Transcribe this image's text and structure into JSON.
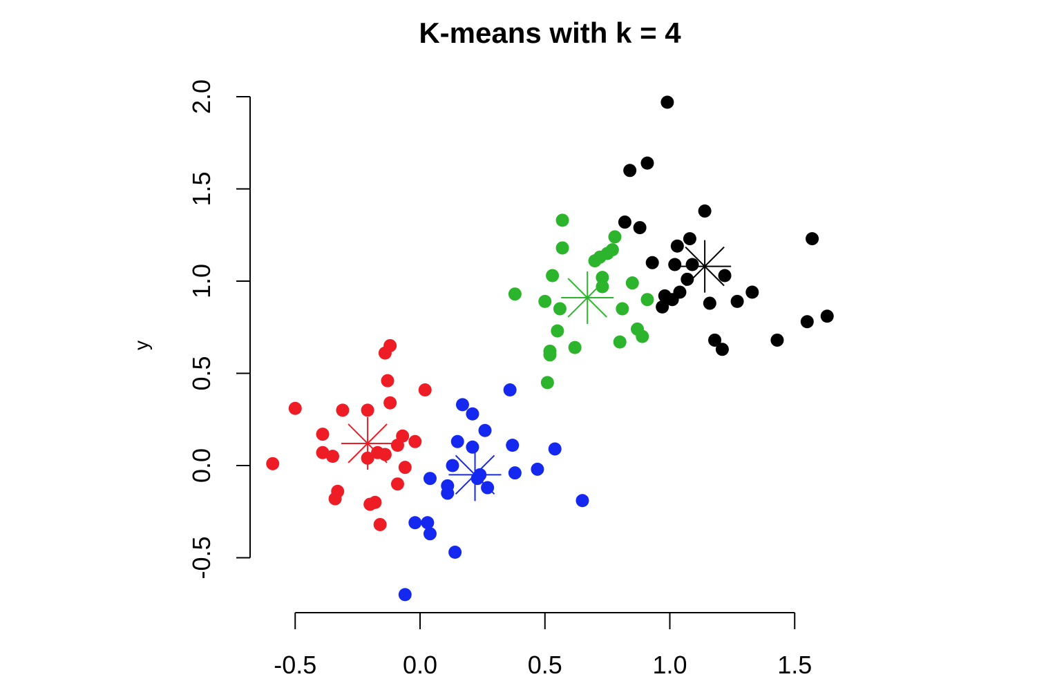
{
  "chart_data": {
    "type": "scatter",
    "title": "K-means with k = 4",
    "xlabel": "",
    "ylabel": "y",
    "xlim": [
      -0.5,
      1.5
    ],
    "ylim": [
      -0.5,
      2.0
    ],
    "xticks": [
      -0.5,
      0.0,
      0.5,
      1.0,
      1.5
    ],
    "yticks": [
      -0.5,
      0.0,
      0.5,
      1.0,
      1.5,
      2.0
    ],
    "xtick_labels": [
      "-0.5",
      "0.0",
      "0.5",
      "1.0",
      "1.5"
    ],
    "ytick_labels": [
      "-0.5",
      "0.0",
      "0.5",
      "1.0",
      "1.5",
      "2.0"
    ],
    "grid": false,
    "legend": "none",
    "series": [
      {
        "color": "#ee1c25",
        "centroid": [
          -0.21,
          0.12
        ],
        "x": [
          -0.59,
          -0.5,
          -0.39,
          -0.39,
          -0.35,
          -0.33,
          -0.34,
          -0.31,
          -0.21,
          -0.21,
          -0.2,
          -0.18,
          -0.17,
          -0.16,
          -0.13,
          -0.14,
          -0.14,
          -0.12,
          -0.12,
          -0.09,
          -0.09,
          -0.07,
          -0.06,
          -0.02,
          0.02
        ],
        "y": [
          0.01,
          0.31,
          0.17,
          0.07,
          0.05,
          -0.14,
          -0.18,
          0.3,
          0.3,
          0.04,
          -0.21,
          -0.2,
          0.07,
          -0.32,
          0.46,
          0.61,
          0.06,
          0.34,
          0.65,
          0.11,
          -0.1,
          0.16,
          -0.01,
          0.13,
          0.41
        ]
      },
      {
        "color": "#1428f0",
        "centroid": [
          0.22,
          -0.05
        ],
        "x": [
          -0.06,
          -0.02,
          0.03,
          0.04,
          0.04,
          0.11,
          0.11,
          0.13,
          0.14,
          0.15,
          0.17,
          0.21,
          0.21,
          0.23,
          0.24,
          0.26,
          0.27,
          0.36,
          0.37,
          0.38,
          0.47,
          0.54,
          0.65
        ],
        "y": [
          -0.7,
          -0.31,
          -0.31,
          -0.37,
          -0.07,
          -0.15,
          -0.11,
          0.0,
          -0.47,
          0.13,
          0.33,
          0.1,
          0.28,
          -0.07,
          -0.05,
          0.19,
          -0.12,
          0.41,
          0.11,
          -0.04,
          -0.02,
          0.09,
          -0.19
        ]
      },
      {
        "color": "#2cb52c",
        "centroid": [
          0.67,
          0.91
        ],
        "x": [
          0.38,
          0.5,
          0.51,
          0.52,
          0.52,
          0.53,
          0.55,
          0.56,
          0.57,
          0.57,
          0.62,
          0.7,
          0.72,
          0.73,
          0.73,
          0.75,
          0.77,
          0.78,
          0.8,
          0.81,
          0.85,
          0.87,
          0.89,
          0.91
        ],
        "y": [
          0.93,
          0.89,
          0.45,
          0.6,
          0.62,
          1.03,
          0.73,
          0.85,
          1.33,
          1.18,
          0.64,
          1.11,
          1.13,
          0.97,
          1.02,
          1.15,
          1.17,
          1.24,
          0.67,
          0.85,
          0.99,
          0.74,
          0.7,
          0.9
        ]
      },
      {
        "color": "#000000",
        "centroid": [
          1.14,
          1.08
        ],
        "x": [
          0.82,
          0.84,
          0.88,
          0.91,
          0.93,
          0.97,
          0.98,
          0.99,
          1.01,
          1.02,
          1.03,
          1.04,
          1.07,
          1.08,
          1.09,
          1.14,
          1.16,
          1.18,
          1.21,
          1.22,
          1.27,
          1.33,
          1.43,
          1.55,
          1.57,
          1.63
        ],
        "y": [
          1.32,
          1.6,
          1.29,
          1.64,
          1.1,
          0.86,
          0.92,
          1.97,
          0.9,
          1.09,
          1.19,
          0.94,
          1.01,
          1.23,
          1.09,
          1.38,
          0.88,
          0.68,
          0.63,
          1.03,
          0.89,
          0.94,
          0.68,
          0.78,
          1.23,
          0.81
        ]
      }
    ]
  }
}
